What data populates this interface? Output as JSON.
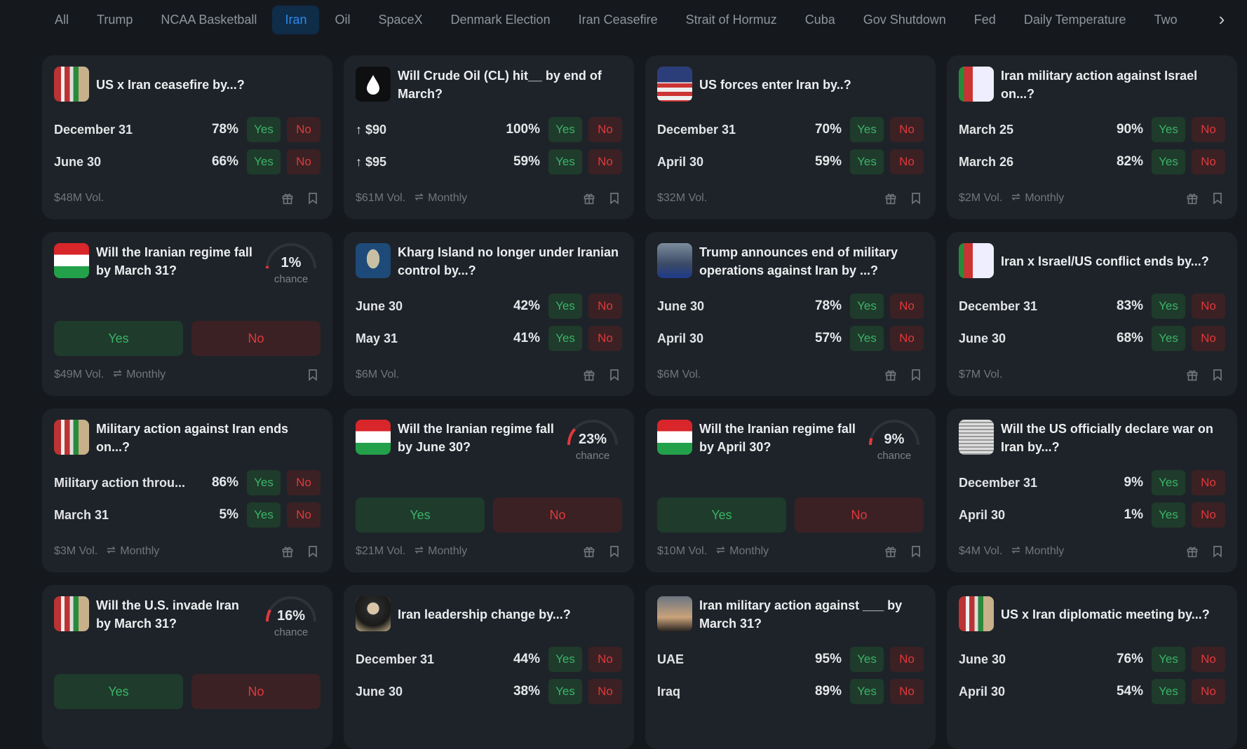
{
  "tabs": [
    {
      "label": "All"
    },
    {
      "label": "Trump"
    },
    {
      "label": "NCAA Basketball"
    },
    {
      "label": "Iran",
      "active": true
    },
    {
      "label": "Oil"
    },
    {
      "label": "SpaceX"
    },
    {
      "label": "Denmark Election"
    },
    {
      "label": "Iran Ceasefire"
    },
    {
      "label": "Strait of Hormuz"
    },
    {
      "label": "Cuba"
    },
    {
      "label": "Gov Shutdown"
    },
    {
      "label": "Fed"
    },
    {
      "label": "Daily Temperature"
    },
    {
      "label": "Two"
    }
  ],
  "labels": {
    "yes": "Yes",
    "no": "No",
    "chance": "chance"
  },
  "colors": {
    "yes": "#3bb368",
    "no": "#e0393b",
    "accent": "#2b8cf0"
  },
  "cards": [
    {
      "title": "US x Iran ceasefire by...?",
      "icon": "us-iran-flags",
      "rows": [
        {
          "label": "December 31",
          "pct": "78%"
        },
        {
          "label": "June 30",
          "pct": "66%"
        }
      ],
      "volume": "$48M Vol.",
      "gift": true
    },
    {
      "title": "Will Crude Oil (CL) hit__ by end of March?",
      "icon": "oil-drop",
      "rows": [
        {
          "label": "↑ $90",
          "pct": "100%"
        },
        {
          "label": "↑ $95",
          "pct": "59%"
        }
      ],
      "volume": "$61M Vol.",
      "recurrence": "Monthly",
      "gift": true
    },
    {
      "title": "US forces enter Iran by..?",
      "icon": "us-flag",
      "rows": [
        {
          "label": "December 31",
          "pct": "70%"
        },
        {
          "label": "April 30",
          "pct": "59%"
        }
      ],
      "volume": "$32M Vol.",
      "gift": true
    },
    {
      "title": "Iran military action against Israel on...?",
      "icon": "iran-israel-flags",
      "rows": [
        {
          "label": "March 25",
          "pct": "90%"
        },
        {
          "label": "March 26",
          "pct": "82%"
        }
      ],
      "volume": "$2M Vol.",
      "recurrence": "Monthly",
      "gift": true
    },
    {
      "title": "Will the Iranian regime fall by March 31?",
      "icon": "iran-flag",
      "binary": true,
      "chance": "1%",
      "chance_value": 1,
      "volume": "$49M Vol.",
      "recurrence": "Monthly",
      "gift": false
    },
    {
      "title": "Kharg Island no longer under Iranian control by...?",
      "icon": "island",
      "rows": [
        {
          "label": "June 30",
          "pct": "42%"
        },
        {
          "label": "May 31",
          "pct": "41%"
        }
      ],
      "volume": "$6M Vol.",
      "gift": true
    },
    {
      "title": "Trump announces end of military operations against Iran by ...?",
      "icon": "trump-photo",
      "rows": [
        {
          "label": "June 30",
          "pct": "78%"
        },
        {
          "label": "April 30",
          "pct": "57%"
        }
      ],
      "volume": "$6M Vol.",
      "gift": true
    },
    {
      "title": "Iran x Israel/US conflict ends by...?",
      "icon": "iran-israel-flags",
      "rows": [
        {
          "label": "December 31",
          "pct": "83%"
        },
        {
          "label": "June 30",
          "pct": "68%"
        }
      ],
      "volume": "$7M Vol.",
      "gift": true
    },
    {
      "title": "Military action against Iran ends on...?",
      "icon": "us-iran-flags",
      "rows": [
        {
          "label": "Military action throu...",
          "pct": "86%"
        },
        {
          "label": "March 31",
          "pct": "5%"
        }
      ],
      "volume": "$3M Vol.",
      "recurrence": "Monthly",
      "gift": true
    },
    {
      "title": "Will the Iranian regime fall by June 30?",
      "icon": "iran-flag",
      "binary": true,
      "chance": "23%",
      "chance_value": 23,
      "volume": "$21M Vol.",
      "recurrence": "Monthly",
      "gift": true
    },
    {
      "title": "Will the Iranian regime fall by April 30?",
      "icon": "iran-flag",
      "binary": true,
      "chance": "9%",
      "chance_value": 9,
      "volume": "$10M Vol.",
      "recurrence": "Monthly",
      "gift": true
    },
    {
      "title": "Will the US officially declare war on Iran by...?",
      "icon": "newspaper",
      "rows": [
        {
          "label": "December 31",
          "pct": "9%"
        },
        {
          "label": "April 30",
          "pct": "1%"
        }
      ],
      "volume": "$4M Vol.",
      "recurrence": "Monthly",
      "gift": true
    },
    {
      "title": "Will the U.S. invade Iran by March 31?",
      "icon": "us-iran-flags",
      "binary": true,
      "chance": "16%",
      "chance_value": 16
    },
    {
      "title": "Iran leadership change by...?",
      "icon": "leader-photo",
      "rows": [
        {
          "label": "December 31",
          "pct": "44%"
        },
        {
          "label": "June 30",
          "pct": "38%"
        }
      ]
    },
    {
      "title": "Iran military action against ___ by March 31?",
      "icon": "missiles-photo",
      "rows": [
        {
          "label": "UAE",
          "pct": "95%"
        },
        {
          "label": "Iraq",
          "pct": "89%"
        }
      ]
    },
    {
      "title": "US x Iran diplomatic meeting by...?",
      "icon": "us-iran-flags",
      "rows": [
        {
          "label": "June 30",
          "pct": "76%"
        },
        {
          "label": "April 30",
          "pct": "54%"
        }
      ]
    }
  ]
}
